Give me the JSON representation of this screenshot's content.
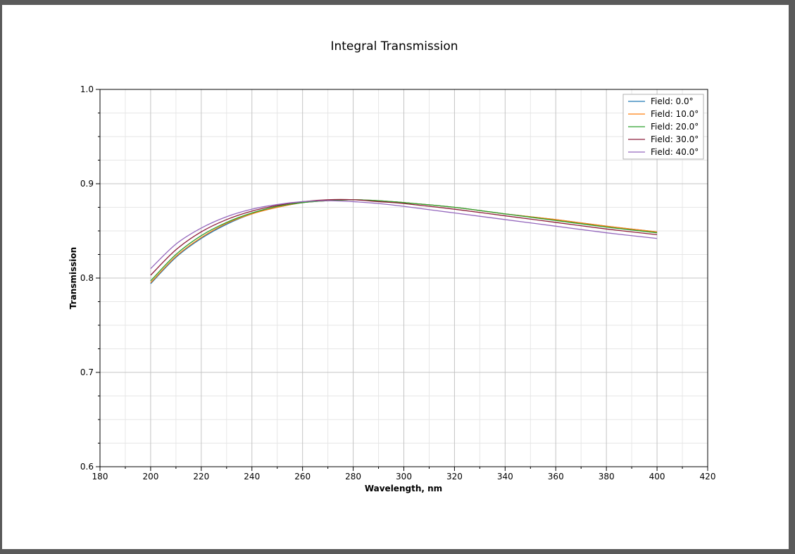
{
  "chart_data": {
    "type": "line",
    "title": "Integral Transmission",
    "xlabel": "Wavelength, nm",
    "ylabel": "Transmission",
    "xlim": [
      180,
      420
    ],
    "ylim": [
      0.6,
      1.0
    ],
    "x_major_ticks": [
      180,
      200,
      220,
      240,
      260,
      280,
      300,
      320,
      340,
      360,
      380,
      400,
      420
    ],
    "x_tick_labels": [
      "180",
      "200",
      "220",
      "240",
      "260",
      "280",
      "300",
      "320",
      "340",
      "360",
      "380",
      "400",
      "420"
    ],
    "y_major_ticks": [
      0.6,
      0.7,
      0.8,
      0.9,
      1.0
    ],
    "y_tick_labels": [
      "0.6",
      "0.7",
      "0.8",
      "0.9",
      "1.0"
    ],
    "x_minor_step": 10,
    "y_minor_step": 0.025,
    "grid": true,
    "legend_position": "top-right",
    "x": [
      200,
      210,
      220,
      230,
      240,
      250,
      260,
      270,
      280,
      290,
      300,
      320,
      340,
      360,
      380,
      400
    ],
    "series": [
      {
        "name": "Field: 0.0°",
        "color": "#1f77b4",
        "values": [
          0.794,
          0.822,
          0.842,
          0.857,
          0.868,
          0.875,
          0.88,
          0.882,
          0.883,
          0.882,
          0.88,
          0.875,
          0.868,
          0.862,
          0.855,
          0.849
        ]
      },
      {
        "name": "Field: 10.0°",
        "color": "#ff7f0e",
        "values": [
          0.795,
          0.823,
          0.843,
          0.858,
          0.868,
          0.875,
          0.88,
          0.882,
          0.883,
          0.882,
          0.88,
          0.875,
          0.868,
          0.862,
          0.855,
          0.849
        ]
      },
      {
        "name": "Field: 20.0°",
        "color": "#2ca02c",
        "values": [
          0.797,
          0.825,
          0.845,
          0.859,
          0.869,
          0.876,
          0.88,
          0.882,
          0.883,
          0.882,
          0.88,
          0.875,
          0.868,
          0.861,
          0.854,
          0.848
        ]
      },
      {
        "name": "Field: 30.0°",
        "color": "#8c1c3a",
        "values": [
          0.803,
          0.83,
          0.849,
          0.862,
          0.871,
          0.877,
          0.881,
          0.883,
          0.883,
          0.881,
          0.879,
          0.873,
          0.866,
          0.859,
          0.852,
          0.846
        ]
      },
      {
        "name": "Field: 40.0°",
        "color": "#9467bd",
        "values": [
          0.81,
          0.836,
          0.853,
          0.865,
          0.873,
          0.878,
          0.881,
          0.882,
          0.881,
          0.879,
          0.876,
          0.869,
          0.862,
          0.855,
          0.848,
          0.842
        ]
      }
    ]
  }
}
